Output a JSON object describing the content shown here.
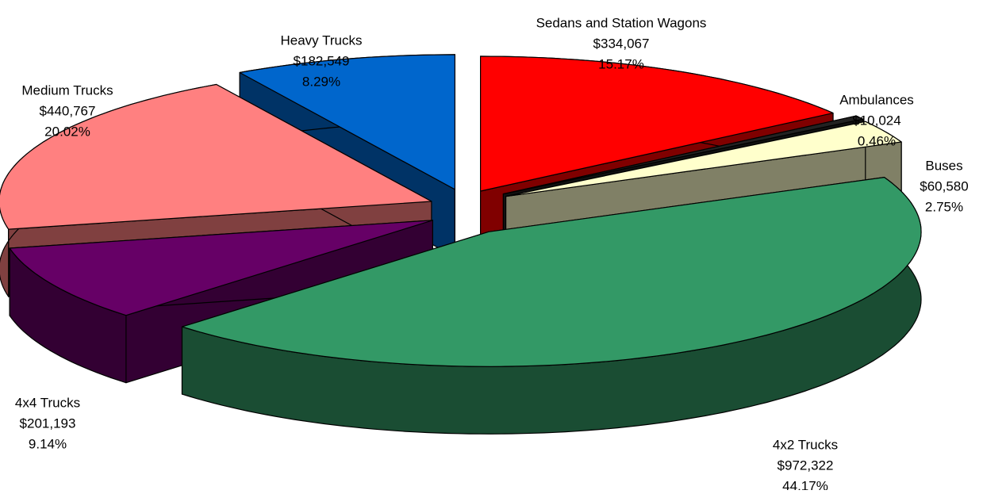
{
  "chart_data": {
    "type": "pie3d",
    "categories": [
      "Sedans and Station Wagons",
      "Ambulances",
      "Buses",
      "4x2 Trucks",
      "4x4 Trucks",
      "Medium Trucks",
      "Heavy Trucks"
    ],
    "values": [
      334067,
      10024,
      60580,
      972322,
      201193,
      440767,
      182549
    ],
    "value_labels": [
      "$334,067",
      "$10,024",
      "$60,580",
      "$972,322",
      "$201,193",
      "$440,767",
      "$182,549"
    ],
    "percents": [
      15.17,
      0.46,
      2.75,
      44.17,
      9.14,
      20.02,
      8.29
    ],
    "percent_labels": [
      "15.17%",
      "0.46%",
      "2.75%",
      "44.17%",
      "9.14%",
      "20.02%",
      "8.29%"
    ],
    "colors": [
      "#ff0000",
      "#222222",
      "#ffffcc",
      "#339966",
      "#660066",
      "#ff8080",
      "#0066cc"
    ]
  }
}
